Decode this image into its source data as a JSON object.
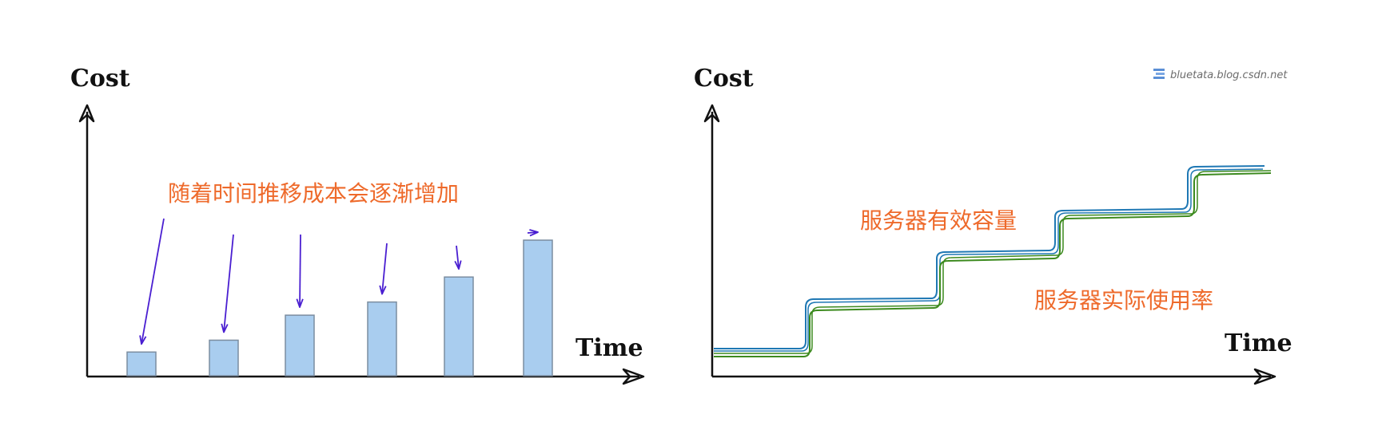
{
  "left_panel": {
    "y_label": "Cost",
    "x_label": "Time",
    "annotation": "随着时间推移成本会逐渐增加",
    "bar_heights": [
      0.09,
      0.135,
      0.23,
      0.28,
      0.375,
      0.515
    ],
    "bar_fill": "#a9cdef",
    "bar_stroke": "#7b8da0",
    "arrow_color": "#4a1fd1"
  },
  "right_panel": {
    "y_label": "Cost",
    "x_label": "Time",
    "label_capacity": "服务器有效容量",
    "label_usage": "服务器实际使用率",
    "watermark": "bluetata.blog.csdn.net",
    "capacity_color": "#1f78b4",
    "usage_color": "#3c8a1e"
  },
  "colors": {
    "axis": "#111111",
    "annotation": "#ee6a2b"
  }
}
